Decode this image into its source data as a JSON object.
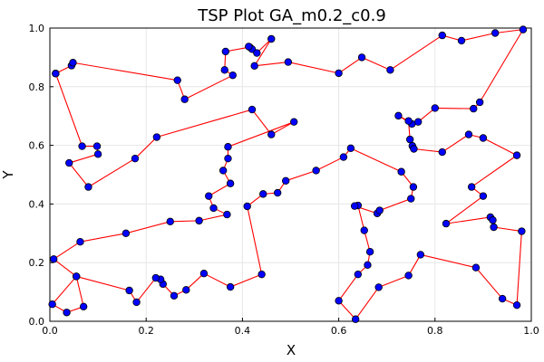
{
  "chart_data": {
    "type": "line",
    "title": "TSP Plot GA_m0.2_c0.9",
    "xlabel": "X",
    "ylabel": "Y",
    "xlim": [
      0.0,
      1.0
    ],
    "ylim": [
      0.0,
      1.0
    ],
    "grid": true,
    "legend": "none",
    "x_ticks": [
      "0.0",
      "0.2",
      "0.4",
      "0.6",
      "0.8",
      "1.0"
    ],
    "y_ticks": [
      "0.0",
      "0.2",
      "0.4",
      "0.6",
      "0.8",
      "1.0"
    ],
    "line_color": "#ff0000",
    "marker_color": "#0000ff",
    "tour": [
      [
        0.012,
        0.845
      ],
      [
        0.045,
        0.872
      ],
      [
        0.048,
        0.882
      ],
      [
        0.265,
        0.822
      ],
      [
        0.28,
        0.757
      ],
      [
        0.38,
        0.839
      ],
      [
        0.363,
        0.857
      ],
      [
        0.365,
        0.92
      ],
      [
        0.415,
        0.935
      ],
      [
        0.42,
        0.928
      ],
      [
        0.413,
        0.937
      ],
      [
        0.43,
        0.915
      ],
      [
        0.46,
        0.963
      ],
      [
        0.425,
        0.871
      ],
      [
        0.495,
        0.884
      ],
      [
        0.6,
        0.846
      ],
      [
        0.648,
        0.9
      ],
      [
        0.707,
        0.857
      ],
      [
        0.815,
        0.975
      ],
      [
        0.855,
        0.957
      ],
      [
        0.925,
        0.983
      ],
      [
        0.983,
        0.995
      ],
      [
        0.893,
        0.747
      ],
      [
        0.88,
        0.725
      ],
      [
        0.8,
        0.727
      ],
      [
        0.765,
        0.68
      ],
      [
        0.752,
        0.673
      ],
      [
        0.724,
        0.701
      ],
      [
        0.745,
        0.683
      ],
      [
        0.748,
        0.62
      ],
      [
        0.753,
        0.598
      ],
      [
        0.756,
        0.588
      ],
      [
        0.815,
        0.577
      ],
      [
        0.87,
        0.637
      ],
      [
        0.9,
        0.625
      ],
      [
        0.97,
        0.566
      ],
      [
        0.876,
        0.458
      ],
      [
        0.9,
        0.427
      ],
      [
        0.823,
        0.333
      ],
      [
        0.915,
        0.355
      ],
      [
        0.92,
        0.345
      ],
      [
        0.922,
        0.321
      ],
      [
        0.98,
        0.307
      ],
      [
        0.97,
        0.055
      ],
      [
        0.94,
        0.077
      ],
      [
        0.885,
        0.183
      ],
      [
        0.77,
        0.227
      ],
      [
        0.745,
        0.156
      ],
      [
        0.683,
        0.116
      ],
      [
        0.635,
        0.007
      ],
      [
        0.6,
        0.07
      ],
      [
        0.64,
        0.16
      ],
      [
        0.66,
        0.192
      ],
      [
        0.665,
        0.237
      ],
      [
        0.653,
        0.31
      ],
      [
        0.64,
        0.395
      ],
      [
        0.633,
        0.393
      ],
      [
        0.68,
        0.368
      ],
      [
        0.685,
        0.378
      ],
      [
        0.75,
        0.418
      ],
      [
        0.755,
        0.458
      ],
      [
        0.73,
        0.51
      ],
      [
        0.625,
        0.59
      ],
      [
        0.61,
        0.56
      ],
      [
        0.553,
        0.514
      ],
      [
        0.49,
        0.479
      ],
      [
        0.473,
        0.438
      ],
      [
        0.443,
        0.434
      ],
      [
        0.41,
        0.392
      ],
      [
        0.44,
        0.16
      ],
      [
        0.375,
        0.117
      ],
      [
        0.32,
        0.163
      ],
      [
        0.283,
        0.107
      ],
      [
        0.258,
        0.087
      ],
      [
        0.235,
        0.127
      ],
      [
        0.23,
        0.143
      ],
      [
        0.22,
        0.148
      ],
      [
        0.18,
        0.065
      ],
      [
        0.165,
        0.105
      ],
      [
        0.055,
        0.153
      ],
      [
        0.07,
        0.05
      ],
      [
        0.035,
        0.03
      ],
      [
        0.005,
        0.058
      ],
      [
        0.055,
        0.153
      ],
      [
        0.008,
        0.212
      ],
      [
        0.063,
        0.271
      ],
      [
        0.158,
        0.3
      ],
      [
        0.25,
        0.34
      ],
      [
        0.31,
        0.343
      ],
      [
        0.368,
        0.364
      ],
      [
        0.34,
        0.386
      ],
      [
        0.33,
        0.427
      ],
      [
        0.375,
        0.47
      ],
      [
        0.36,
        0.514
      ],
      [
        0.37,
        0.555
      ],
      [
        0.37,
        0.595
      ],
      [
        0.507,
        0.68
      ],
      [
        0.46,
        0.637
      ],
      [
        0.42,
        0.722
      ],
      [
        0.222,
        0.628
      ],
      [
        0.177,
        0.555
      ],
      [
        0.08,
        0.458
      ],
      [
        0.04,
        0.54
      ],
      [
        0.1,
        0.57
      ],
      [
        0.098,
        0.597
      ],
      [
        0.067,
        0.597
      ],
      [
        0.012,
        0.845
      ]
    ]
  }
}
